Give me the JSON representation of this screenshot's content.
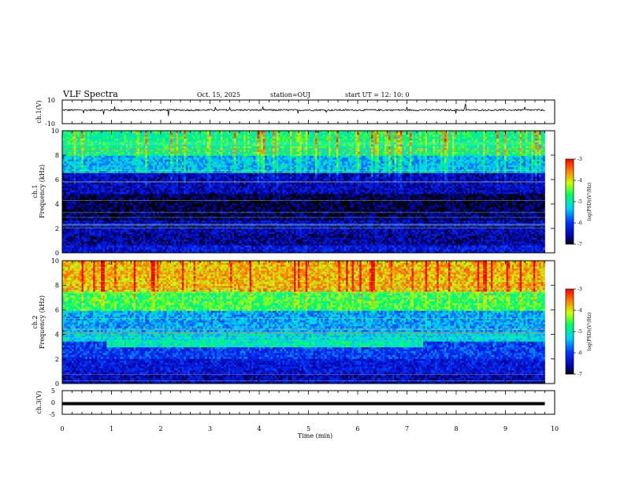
{
  "header": {
    "title": "VLF Spectra",
    "date": "Oct. 15, 2025",
    "station": "station=OUJ",
    "start": "start UT =  12: 10: 0"
  },
  "chart_data": [
    {
      "type": "line",
      "panel": "ch1-waveform",
      "ylabel": "ch.1(V)",
      "ylim": [
        -10,
        10
      ],
      "yticks": [
        "10",
        "-10"
      ],
      "baseline": 1.5
    },
    {
      "type": "heatmap",
      "panel": "ch1-spectrogram",
      "ylabel": "ch.1\nFrequency (kHz)",
      "ylim": [
        0,
        10
      ],
      "yticks": [
        "0",
        "2",
        "4",
        "6",
        "8",
        "10"
      ],
      "xlim": [
        0,
        10
      ],
      "data_end_min": 9.8,
      "colorbar": {
        "label": "log(PSD)(V²/Hz)",
        "ticks": [
          "-3",
          "-4",
          "-5",
          "-6",
          "-7"
        ],
        "range": [
          -7,
          -3
        ]
      },
      "bands": [
        {
          "f": [
            0,
            0.7
          ],
          "level": -6.3
        },
        {
          "f": [
            0.7,
            1.6
          ],
          "level": -6.6
        },
        {
          "f": [
            1.6,
            2.6
          ],
          "level": -6.5
        },
        {
          "f": [
            2.6,
            3.4
          ],
          "level": -6.8
        },
        {
          "f": [
            3.4,
            4.8
          ],
          "level": -6.9
        },
        {
          "f": [
            4.8,
            6.6
          ],
          "level": -6.5
        },
        {
          "f": [
            6.6,
            8.0
          ],
          "level": -5.4
        },
        {
          "f": [
            8.0,
            10.0
          ],
          "level": -4.8
        }
      ]
    },
    {
      "type": "heatmap",
      "panel": "ch2-spectrogram",
      "ylabel": "ch.2\nFrequency (kHz)",
      "ylim": [
        0,
        10
      ],
      "yticks": [
        "0",
        "2",
        "4",
        "6",
        "8",
        "10"
      ],
      "xlim": [
        0,
        10
      ],
      "data_end_min": 9.8,
      "colorbar": {
        "label": "log(PSD)(V²/Hz)",
        "ticks": [
          "-3",
          "-4",
          "-5",
          "-6",
          "-7"
        ],
        "range": [
          -7,
          -3
        ]
      },
      "bands": [
        {
          "f": [
            0,
            0.8
          ],
          "level": -6.5
        },
        {
          "f": [
            0.8,
            2.0
          ],
          "level": -6.3
        },
        {
          "f": [
            2.0,
            3.4
          ],
          "level": -6.0
        },
        {
          "f": [
            3.4,
            4.2
          ],
          "level": -5.2
        },
        {
          "f": [
            4.2,
            6.0
          ],
          "level": -5.5
        },
        {
          "f": [
            6.0,
            7.5
          ],
          "level": -4.6
        },
        {
          "f": [
            7.5,
            10.0
          ],
          "level": -3.8
        }
      ],
      "feature": {
        "t": [
          0.9,
          7.3
        ],
        "f": [
          3.0,
          3.6
        ],
        "level": -5.0
      }
    },
    {
      "type": "line",
      "panel": "ch3-waveform",
      "ylabel": "ch.3(V)",
      "ylim": [
        -5,
        5
      ],
      "yticks": [
        "5",
        "0",
        "-5"
      ],
      "baseline": -0.5
    }
  ],
  "xaxis": {
    "label": "Time (min)",
    "ticks": [
      "0",
      "1",
      "2",
      "3",
      "4",
      "5",
      "6",
      "7",
      "8",
      "9",
      "10"
    ]
  }
}
